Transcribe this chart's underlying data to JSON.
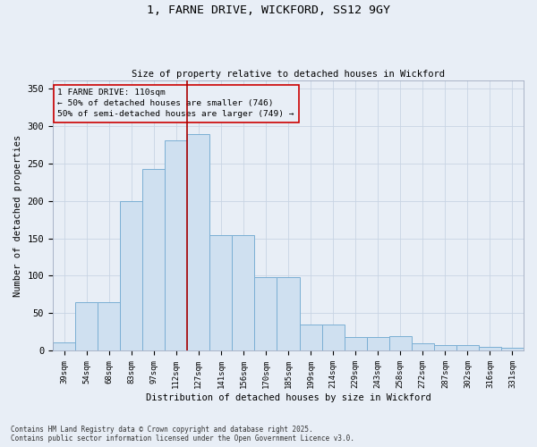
{
  "title_line1": "1, FARNE DRIVE, WICKFORD, SS12 9GY",
  "title_line2": "Size of property relative to detached houses in Wickford",
  "xlabel": "Distribution of detached houses by size in Wickford",
  "ylabel": "Number of detached properties",
  "categories": [
    "39sqm",
    "54sqm",
    "68sqm",
    "83sqm",
    "97sqm",
    "112sqm",
    "127sqm",
    "141sqm",
    "156sqm",
    "170sqm",
    "185sqm",
    "199sqm",
    "214sqm",
    "229sqm",
    "243sqm",
    "258sqm",
    "272sqm",
    "287sqm",
    "302sqm",
    "316sqm",
    "331sqm"
  ],
  "values": [
    11,
    65,
    65,
    200,
    242,
    280,
    289,
    154,
    154,
    98,
    98,
    35,
    35,
    18,
    18,
    20,
    10,
    8,
    8,
    5,
    4
  ],
  "bar_color": "#cfe0f0",
  "bar_edge_color": "#7bafd4",
  "grid_color": "#c8d4e4",
  "background_color": "#e8eef6",
  "vline_x_index": 6,
  "vline_color": "#aa0000",
  "annotation_text": "1 FARNE DRIVE: 110sqm\n← 50% of detached houses are smaller (746)\n50% of semi-detached houses are larger (749) →",
  "annotation_box_color": "#cc0000",
  "footnote_line1": "Contains HM Land Registry data © Crown copyright and database right 2025.",
  "footnote_line2": "Contains public sector information licensed under the Open Government Licence v3.0.",
  "ylim": [
    0,
    360
  ],
  "yticks": [
    0,
    50,
    100,
    150,
    200,
    250,
    300,
    350
  ]
}
